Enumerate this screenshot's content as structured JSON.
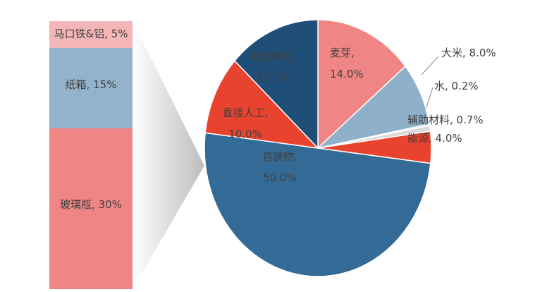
{
  "chart_data": [
    {
      "type": "pie",
      "labels": [
        "麦芽, 14.0%",
        "大米, 8.0%",
        "水, 0.2%",
        "辅助材料, 0.7%",
        "能源, 4.0%",
        "包装物, 50.0%",
        "直接人工, 10.0%",
        "制造费用, 13.1%"
      ],
      "values": [
        14.0,
        8.0,
        0.2,
        0.7,
        4.0,
        50.0,
        10.0,
        13.1
      ],
      "colors": [
        "#ef8585",
        "#8fb0c9",
        "#c8d8e6",
        "#d9d9d9",
        "#e8432e",
        "#346b96",
        "#e8432e",
        "#1f4e79"
      ]
    },
    {
      "type": "bar",
      "labels": [
        "马口铁&铝, 5%",
        "纸箱, 15%",
        "玻璃瓶, 30%"
      ],
      "values": [
        5,
        15,
        30
      ],
      "colors": [
        "#f4b6b6",
        "#93b3cc",
        "#ef8585"
      ]
    }
  ]
}
